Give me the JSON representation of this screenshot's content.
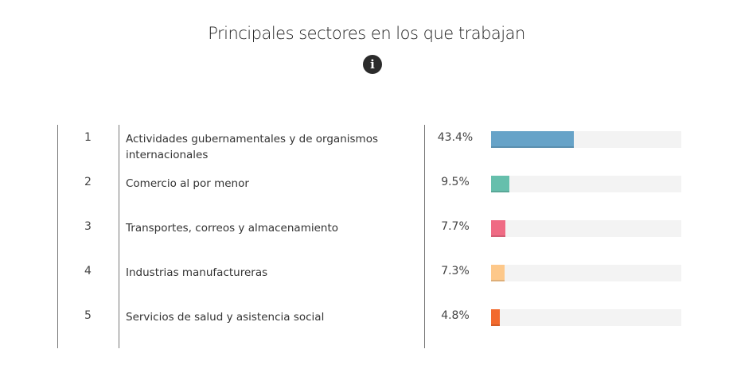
{
  "title": "Principales sectores en los que trabajan",
  "info_icon": "info-circle-icon",
  "chart_data": {
    "type": "bar",
    "orientation": "horizontal",
    "title": "Principales sectores en los que trabajan",
    "xlim": [
      0,
      100
    ],
    "rows": [
      {
        "rank": "1",
        "label": "Actividades gubernamentales y de organismos internacionales",
        "value": 43.4,
        "value_label": "43.4%",
        "color": "#67a3c8"
      },
      {
        "rank": "2",
        "label": "Comercio al por menor",
        "value": 9.5,
        "value_label": "9.5%",
        "color": "#66bfac"
      },
      {
        "rank": "3",
        "label": "Transportes, correos y almacenamiento",
        "value": 7.7,
        "value_label": "7.7%",
        "color": "#ef6b84"
      },
      {
        "rank": "4",
        "label": "Industrias manufactureras",
        "value": 7.3,
        "value_label": "7.3%",
        "color": "#fdc88a"
      },
      {
        "rank": "5",
        "label": "Servicios de salud y asistencia social",
        "value": 4.8,
        "value_label": "4.8%",
        "color": "#f26a2e"
      }
    ]
  }
}
